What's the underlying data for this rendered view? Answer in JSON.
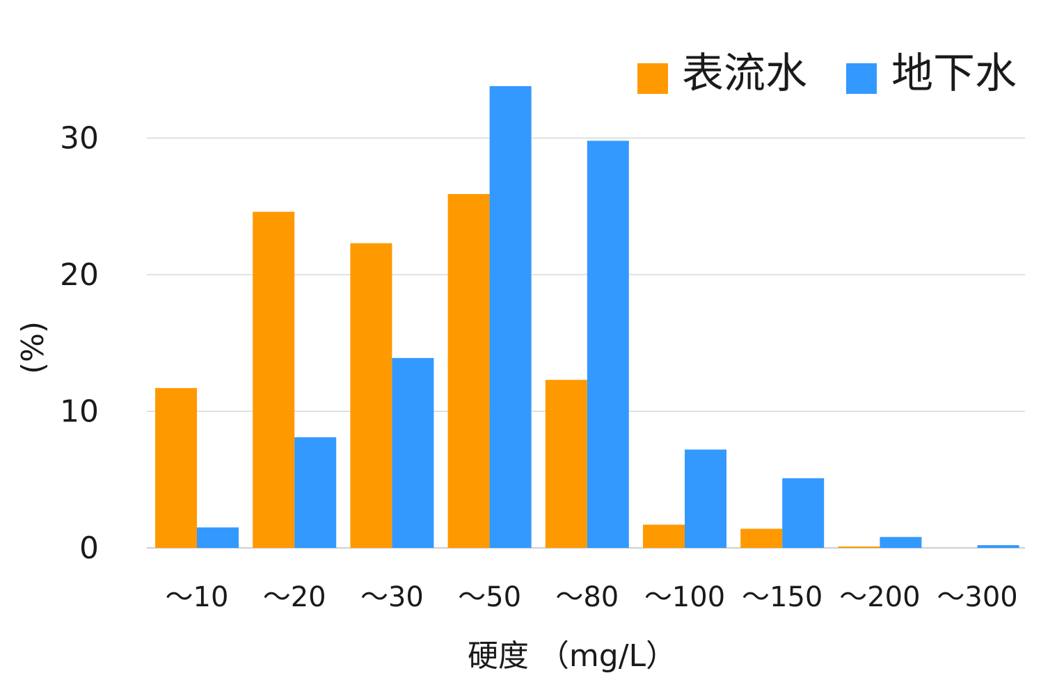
{
  "chart_data": {
    "type": "bar",
    "xlabel": "硬度 （mg/L）",
    "ylabel": "(%)",
    "ylim": [
      0,
      30
    ],
    "yticks": [
      "0",
      "10",
      "20",
      "30"
    ],
    "grid": true,
    "legend_position": "top-right",
    "categories": [
      "～10",
      "～20",
      "～30",
      "～50",
      "～80",
      "～100",
      "～150",
      "～200",
      "～300"
    ],
    "series": [
      {
        "name": "表流水",
        "color": "#FF9900",
        "values": [
          11.7,
          24.6,
          22.3,
          25.9,
          12.3,
          1.7,
          1.4,
          0.1,
          0
        ]
      },
      {
        "name": "地下水",
        "color": "#3399FF",
        "values": [
          1.5,
          8.1,
          13.9,
          33.8,
          29.8,
          7.2,
          5.1,
          0.8,
          0.2
        ]
      }
    ]
  }
}
